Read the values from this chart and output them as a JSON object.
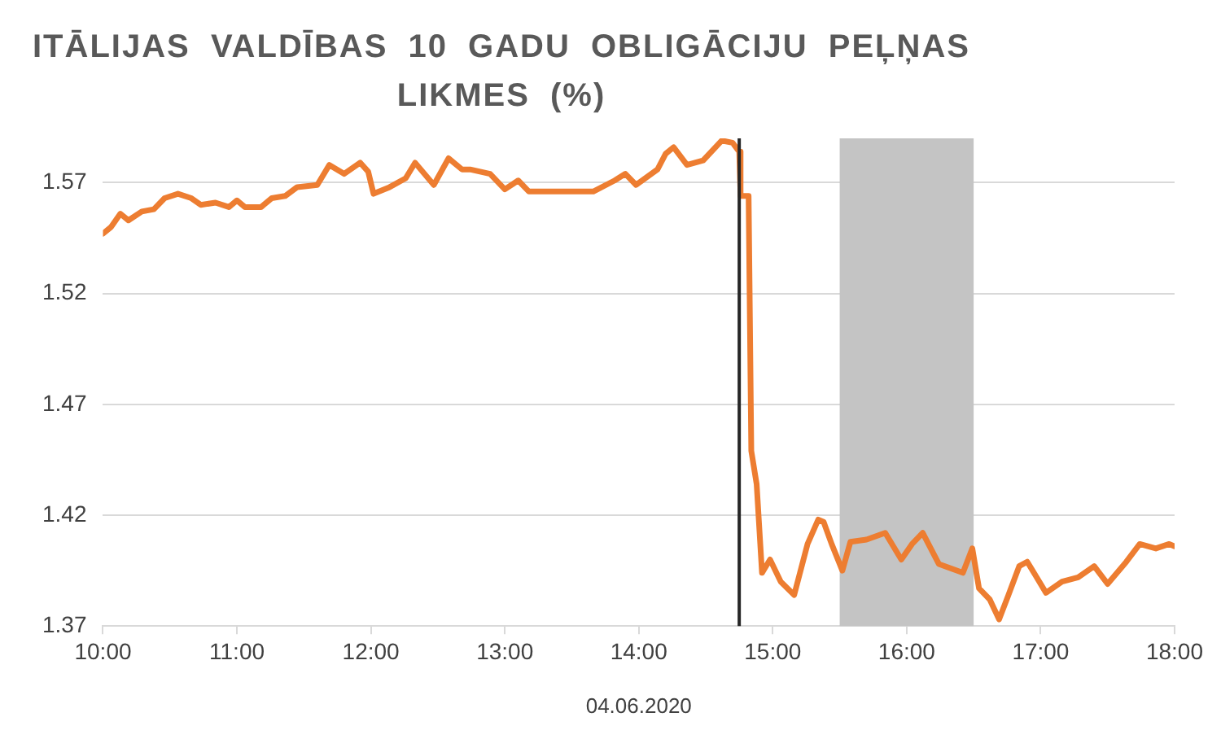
{
  "chart_data": {
    "type": "line",
    "title": "ITĀLIJAS VALDĪBAS 10 GADU OBLIGĀCIJU PEĻŅAS LIKMES (%)",
    "xlabel": "04.06.2020",
    "x": [
      10.0,
      10.06,
      10.13,
      10.19,
      10.29,
      10.38,
      10.46,
      10.56,
      10.66,
      10.73,
      10.84,
      10.94,
      11.0,
      11.06,
      11.18,
      11.26,
      11.36,
      11.45,
      11.6,
      11.69,
      11.8,
      11.92,
      11.98,
      12.02,
      12.14,
      12.26,
      12.33,
      12.47,
      12.58,
      12.68,
      12.74,
      12.89,
      13.0,
      13.1,
      13.18,
      13.42,
      13.66,
      13.82,
      13.9,
      13.98,
      14.14,
      14.2,
      14.26,
      14.36,
      14.48,
      14.62,
      14.7,
      14.75,
      14.76,
      14.82,
      14.84,
      14.88,
      14.92,
      14.98,
      15.06,
      15.16,
      15.26,
      15.34,
      15.38,
      15.44,
      15.52,
      15.58,
      15.7,
      15.84,
      15.96,
      16.04,
      16.12,
      16.24,
      16.42,
      16.49,
      16.54,
      16.62,
      16.69,
      16.76,
      16.84,
      16.9,
      17.04,
      17.16,
      17.28,
      17.4,
      17.5,
      17.64,
      17.74,
      17.86,
      17.96,
      18.0
    ],
    "series": [
      {
        "color": "#ed7d31",
        "values": [
          1.547,
          1.55,
          1.556,
          1.553,
          1.557,
          1.558,
          1.563,
          1.565,
          1.563,
          1.56,
          1.561,
          1.559,
          1.562,
          1.559,
          1.559,
          1.563,
          1.564,
          1.568,
          1.569,
          1.578,
          1.574,
          1.579,
          1.575,
          1.565,
          1.568,
          1.572,
          1.579,
          1.569,
          1.581,
          1.576,
          1.576,
          1.574,
          1.567,
          1.571,
          1.566,
          1.566,
          1.566,
          1.571,
          1.574,
          1.569,
          1.576,
          1.583,
          1.586,
          1.578,
          1.58,
          1.589,
          1.588,
          1.584,
          1.564,
          1.564,
          1.449,
          1.434,
          1.394,
          1.4,
          1.39,
          1.384,
          1.407,
          1.418,
          1.417,
          1.407,
          1.395,
          1.408,
          1.409,
          1.412,
          1.4,
          1.407,
          1.412,
          1.398,
          1.394,
          1.405,
          1.387,
          1.382,
          1.373,
          1.384,
          1.397,
          1.399,
          1.385,
          1.39,
          1.392,
          1.397,
          1.389,
          1.399,
          1.407,
          1.405,
          1.407,
          1.406
        ]
      }
    ],
    "xlim": [
      10,
      18
    ],
    "xticks": [
      {
        "value": 10,
        "label": "10:00"
      },
      {
        "value": 11,
        "label": "11:00"
      },
      {
        "value": 12,
        "label": "12:00"
      },
      {
        "value": 13,
        "label": "13:00"
      },
      {
        "value": 14,
        "label": "14:00"
      },
      {
        "value": 15,
        "label": "15:00"
      },
      {
        "value": 16,
        "label": "16:00"
      },
      {
        "value": 17,
        "label": "17:00"
      },
      {
        "value": 18,
        "label": "18:00"
      }
    ],
    "ylim": [
      1.37,
      1.59
    ],
    "yticks": [
      1.37,
      1.42,
      1.47,
      1.52,
      1.57
    ],
    "grid": "y",
    "legend": false,
    "marker": "none",
    "line_style": "solid",
    "ref_lines": [
      {
        "axis": "x",
        "value": 14.75,
        "color": "#262626"
      }
    ],
    "bands": [
      {
        "axis": "x",
        "from": 15.5,
        "to": 16.5,
        "color": "#c4c4c4"
      }
    ]
  }
}
